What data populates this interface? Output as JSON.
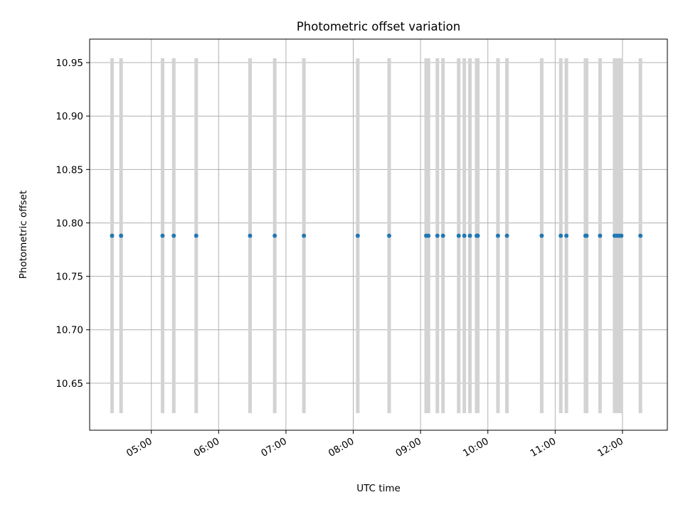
{
  "chart_data": {
    "type": "scatter",
    "title": "Photometric offset variation",
    "xlabel": "UTC time",
    "ylabel": "Photometric offset",
    "x_ticks": [
      "05:00",
      "06:00",
      "07:00",
      "08:00",
      "09:00",
      "10:00",
      "11:00",
      "12:00"
    ],
    "y_ticks": [
      "10.65",
      "10.70",
      "10.75",
      "10.80",
      "10.85",
      "10.90",
      "10.95"
    ],
    "xlim": [
      "04:05",
      "12:40"
    ],
    "ylim": [
      10.606,
      10.972
    ],
    "grid": true,
    "colors": {
      "points": "#1f77b4",
      "error_bars": "#d3d3d3",
      "grid": "#b0b0b0"
    },
    "error_bars": {
      "lower": 10.622,
      "upper": 10.954
    },
    "series": [
      {
        "x": [
          "04:25",
          "04:33",
          "05:10",
          "05:20",
          "05:40",
          "06:28",
          "06:50",
          "07:16",
          "08:04",
          "08:32",
          "09:05",
          "09:07",
          "09:15",
          "09:20",
          "09:34",
          "09:39",
          "09:44",
          "09:50",
          "09:51",
          "10:09",
          "10:17",
          "10:48",
          "11:05",
          "11:10",
          "11:27",
          "11:28",
          "11:40",
          "11:53",
          "11:55",
          "11:57",
          "11:59",
          "12:16"
        ],
        "y": [
          10.788,
          10.788,
          10.788,
          10.788,
          10.788,
          10.788,
          10.788,
          10.788,
          10.788,
          10.788,
          10.788,
          10.788,
          10.788,
          10.788,
          10.788,
          10.788,
          10.788,
          10.788,
          10.788,
          10.788,
          10.788,
          10.788,
          10.788,
          10.788,
          10.788,
          10.788,
          10.788,
          10.788,
          10.788,
          10.788,
          10.788,
          10.788
        ]
      }
    ]
  }
}
